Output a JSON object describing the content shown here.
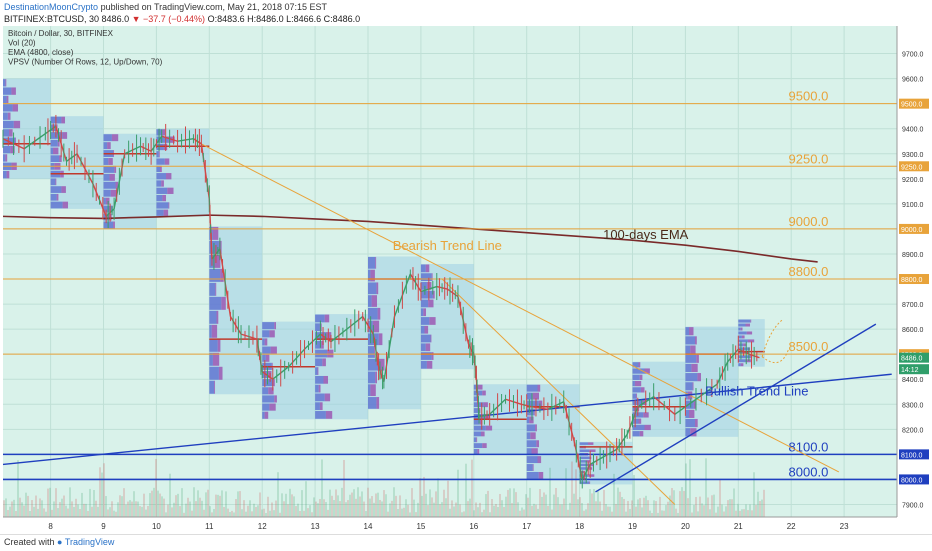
{
  "header": {
    "author": "DestinationMoonCrypto",
    "published_text": "published on TradingView.com, May 21, 2018 07:15 EST",
    "symbol_line": "BITFINEX:BTCUSD, 30",
    "last_price": "8486.0",
    "change": "▼ −37.7 (−0.44%)",
    "ohlc": "O:8483.6 H:8486.0 L:8466.6 C:8486.0"
  },
  "legend": {
    "title": "Bitcoin / Dollar, 30, BITFINEX",
    "vol": "Vol (20)",
    "ema": "EMA (4800, close)",
    "vpsv": "VPSV (Number Of Rows, 12, Up/Down, 70)"
  },
  "footer": {
    "created_with": "Created with",
    "brand": "TradingView"
  },
  "colors": {
    "background": "#d9f2ea",
    "grid": "#bfe0d6",
    "orange": "#e8a33a",
    "blue": "#1f3fbf",
    "ema": "#7a2a2a",
    "candle_up": "#3a9e6a",
    "candle_down": "#d04848",
    "vp_box": "#9fd0e3",
    "vp_up": "#5b6fd1",
    "vp_down": "#9a4fb0"
  },
  "chart_data": {
    "type": "line",
    "title": "Bitcoin / Dollar, 30, BITFINEX",
    "xlabel": "",
    "ylabel": "",
    "x_ticks": [
      "8",
      "9",
      "10",
      "11",
      "12",
      "13",
      "14",
      "15",
      "16",
      "17",
      "18",
      "19",
      "20",
      "21",
      "22",
      "23"
    ],
    "x_range": [
      7.1,
      24.0
    ],
    "y_ticks": [
      9700,
      9600,
      9500,
      9400,
      9300,
      9200,
      9100,
      9000,
      8900,
      8800,
      8700,
      8600,
      8500,
      8400,
      8300,
      8200,
      8100,
      8000,
      7900
    ],
    "ylim": [
      7850,
      9810
    ],
    "horizontal_levels": [
      {
        "value": 9500,
        "label": "9500.0",
        "tag": "9500.0",
        "color": "orange"
      },
      {
        "value": 9250,
        "label": "9250.0",
        "tag": "9250.0",
        "color": "orange"
      },
      {
        "value": 9000,
        "label": "9000.0",
        "tag": "9000.0",
        "color": "orange"
      },
      {
        "value": 8800,
        "label": "8800.0",
        "tag": "8800.0",
        "color": "orange"
      },
      {
        "value": 8500,
        "label": "8500.0",
        "tag": "8500.0",
        "color": "orange"
      },
      {
        "value": 8100,
        "label": "8100.0",
        "tag": "8100.0",
        "color": "blue"
      },
      {
        "value": 8000,
        "label": "8000.0",
        "tag": "8000.0",
        "color": "blue"
      }
    ],
    "price_tags": [
      {
        "value": 8486.0,
        "text": "8486.0",
        "color": "#2f9e6a"
      },
      {
        "value": 8440,
        "text": "14:12",
        "color": "#2f9e6a"
      }
    ],
    "annotations": [
      {
        "text": "Bearish Trend Line",
        "x": 15.5,
        "y": 8915,
        "color": "orange"
      },
      {
        "text": "100-days EMA",
        "x": 19.25,
        "y": 8960,
        "color": "dark"
      },
      {
        "text": "Bullish Trend Line",
        "x": 21.35,
        "y": 8335,
        "color": "blue"
      }
    ],
    "trend_lines": [
      {
        "name": "Bearish Trend Line",
        "color": "orange",
        "points": [
          [
            10.75,
            9350
          ],
          [
            22.9,
            8030
          ]
        ]
      },
      {
        "name": "Bearish Trend Line 2",
        "color": "orange",
        "points": [
          [
            15.4,
            8800
          ],
          [
            19.8,
            7900
          ]
        ]
      },
      {
        "name": "Bullish Trend Line",
        "color": "blue",
        "points": [
          [
            7.1,
            8060
          ],
          [
            23.9,
            8420
          ]
        ]
      },
      {
        "name": "Bullish Trend Line 2",
        "color": "blue",
        "points": [
          [
            18.3,
            7950
          ],
          [
            23.6,
            8620
          ]
        ]
      }
    ],
    "ema": {
      "name": "EMA (4800, close)",
      "points": [
        [
          7.1,
          9050
        ],
        [
          8.0,
          9045
        ],
        [
          9.0,
          9042
        ],
        [
          10.0,
          9048
        ],
        [
          11.0,
          9055
        ],
        [
          12.0,
          9050
        ],
        [
          13.0,
          9040
        ],
        [
          14.0,
          9030
        ],
        [
          15.0,
          9015
        ],
        [
          16.0,
          9000
        ],
        [
          17.0,
          8985
        ],
        [
          18.0,
          8970
        ],
        [
          19.0,
          8955
        ],
        [
          20.0,
          8935
        ],
        [
          21.0,
          8910
        ],
        [
          22.0,
          8880
        ],
        [
          22.5,
          8868
        ]
      ]
    },
    "price_path": [
      [
        7.1,
        9360
      ],
      [
        7.5,
        9320
      ],
      [
        7.9,
        9380
      ],
      [
        8.1,
        9410
      ],
      [
        8.3,
        9270
      ],
      [
        8.5,
        9300
      ],
      [
        8.8,
        9180
      ],
      [
        9.05,
        9050
      ],
      [
        9.2,
        9080
      ],
      [
        9.4,
        9300
      ],
      [
        9.7,
        9330
      ],
      [
        9.9,
        9310
      ],
      [
        10.1,
        9370
      ],
      [
        10.4,
        9350
      ],
      [
        10.7,
        9360
      ],
      [
        10.85,
        9340
      ],
      [
        11.0,
        9120
      ],
      [
        11.05,
        8880
      ],
      [
        11.2,
        8920
      ],
      [
        11.4,
        8650
      ],
      [
        11.6,
        8580
      ],
      [
        11.9,
        8560
      ],
      [
        12.0,
        8430
      ],
      [
        12.2,
        8400
      ],
      [
        12.5,
        8450
      ],
      [
        12.8,
        8520
      ],
      [
        13.1,
        8580
      ],
      [
        13.3,
        8550
      ],
      [
        13.6,
        8600
      ],
      [
        13.9,
        8650
      ],
      [
        14.1,
        8580
      ],
      [
        14.2,
        8450
      ],
      [
        14.3,
        8390
      ],
      [
        14.5,
        8650
      ],
      [
        14.8,
        8820
      ],
      [
        15.0,
        8750
      ],
      [
        15.3,
        8770
      ],
      [
        15.5,
        8760
      ],
      [
        15.7,
        8730
      ],
      [
        15.9,
        8540
      ],
      [
        16.0,
        8500
      ],
      [
        16.05,
        8400
      ],
      [
        16.1,
        8250
      ],
      [
        16.3,
        8260
      ],
      [
        16.6,
        8320
      ],
      [
        16.9,
        8300
      ],
      [
        17.1,
        8290
      ],
      [
        17.4,
        8280
      ],
      [
        17.7,
        8310
      ],
      [
        17.9,
        8150
      ],
      [
        18.05,
        8000
      ],
      [
        18.2,
        8060
      ],
      [
        18.45,
        8090
      ],
      [
        18.7,
        8120
      ],
      [
        18.9,
        8180
      ],
      [
        19.1,
        8290
      ],
      [
        19.4,
        8330
      ],
      [
        19.8,
        8260
      ],
      [
        20.2,
        8320
      ],
      [
        20.6,
        8380
      ],
      [
        20.8,
        8470
      ],
      [
        21.0,
        8520
      ],
      [
        21.2,
        8500
      ],
      [
        21.4,
        8486
      ]
    ],
    "volume_profiles": [
      {
        "x0": 7.1,
        "x1": 8.0,
        "y0": 9200,
        "y1": 9600,
        "poc": 9340
      },
      {
        "x0": 8.0,
        "x1": 9.0,
        "y0": 9080,
        "y1": 9450,
        "poc": 9220
      },
      {
        "x0": 9.0,
        "x1": 10.0,
        "y0": 9000,
        "y1": 9380,
        "poc": 9300
      },
      {
        "x0": 10.0,
        "x1": 11.0,
        "y0": 9050,
        "y1": 9400,
        "poc": 9330
      },
      {
        "x0": 11.0,
        "x1": 12.0,
        "y0": 8340,
        "y1": 9010,
        "poc": 8560
      },
      {
        "x0": 12.0,
        "x1": 13.0,
        "y0": 8240,
        "y1": 8630,
        "poc": 8450
      },
      {
        "x0": 13.0,
        "x1": 14.0,
        "y0": 8240,
        "y1": 8660,
        "poc": 8560
      },
      {
        "x0": 14.0,
        "x1": 15.0,
        "y0": 8280,
        "y1": 8890,
        "poc": 8800
      },
      {
        "x0": 15.0,
        "x1": 16.0,
        "y0": 8440,
        "y1": 8860,
        "poc": 8500
      },
      {
        "x0": 16.0,
        "x1": 17.0,
        "y0": 8100,
        "y1": 8380,
        "poc": 8240
      },
      {
        "x0": 17.0,
        "x1": 18.0,
        "y0": 8000,
        "y1": 8380,
        "poc": 8290
      },
      {
        "x0": 18.0,
        "x1": 19.0,
        "y0": 7980,
        "y1": 8150,
        "poc": 8130
      },
      {
        "x0": 19.0,
        "x1": 20.0,
        "y0": 8170,
        "y1": 8470,
        "poc": 8290
      },
      {
        "x0": 20.0,
        "x1": 21.0,
        "y0": 8170,
        "y1": 8610,
        "poc": 8500
      },
      {
        "x0": 21.0,
        "x1": 21.5,
        "y0": 8450,
        "y1": 8640,
        "poc": 8510
      }
    ]
  }
}
